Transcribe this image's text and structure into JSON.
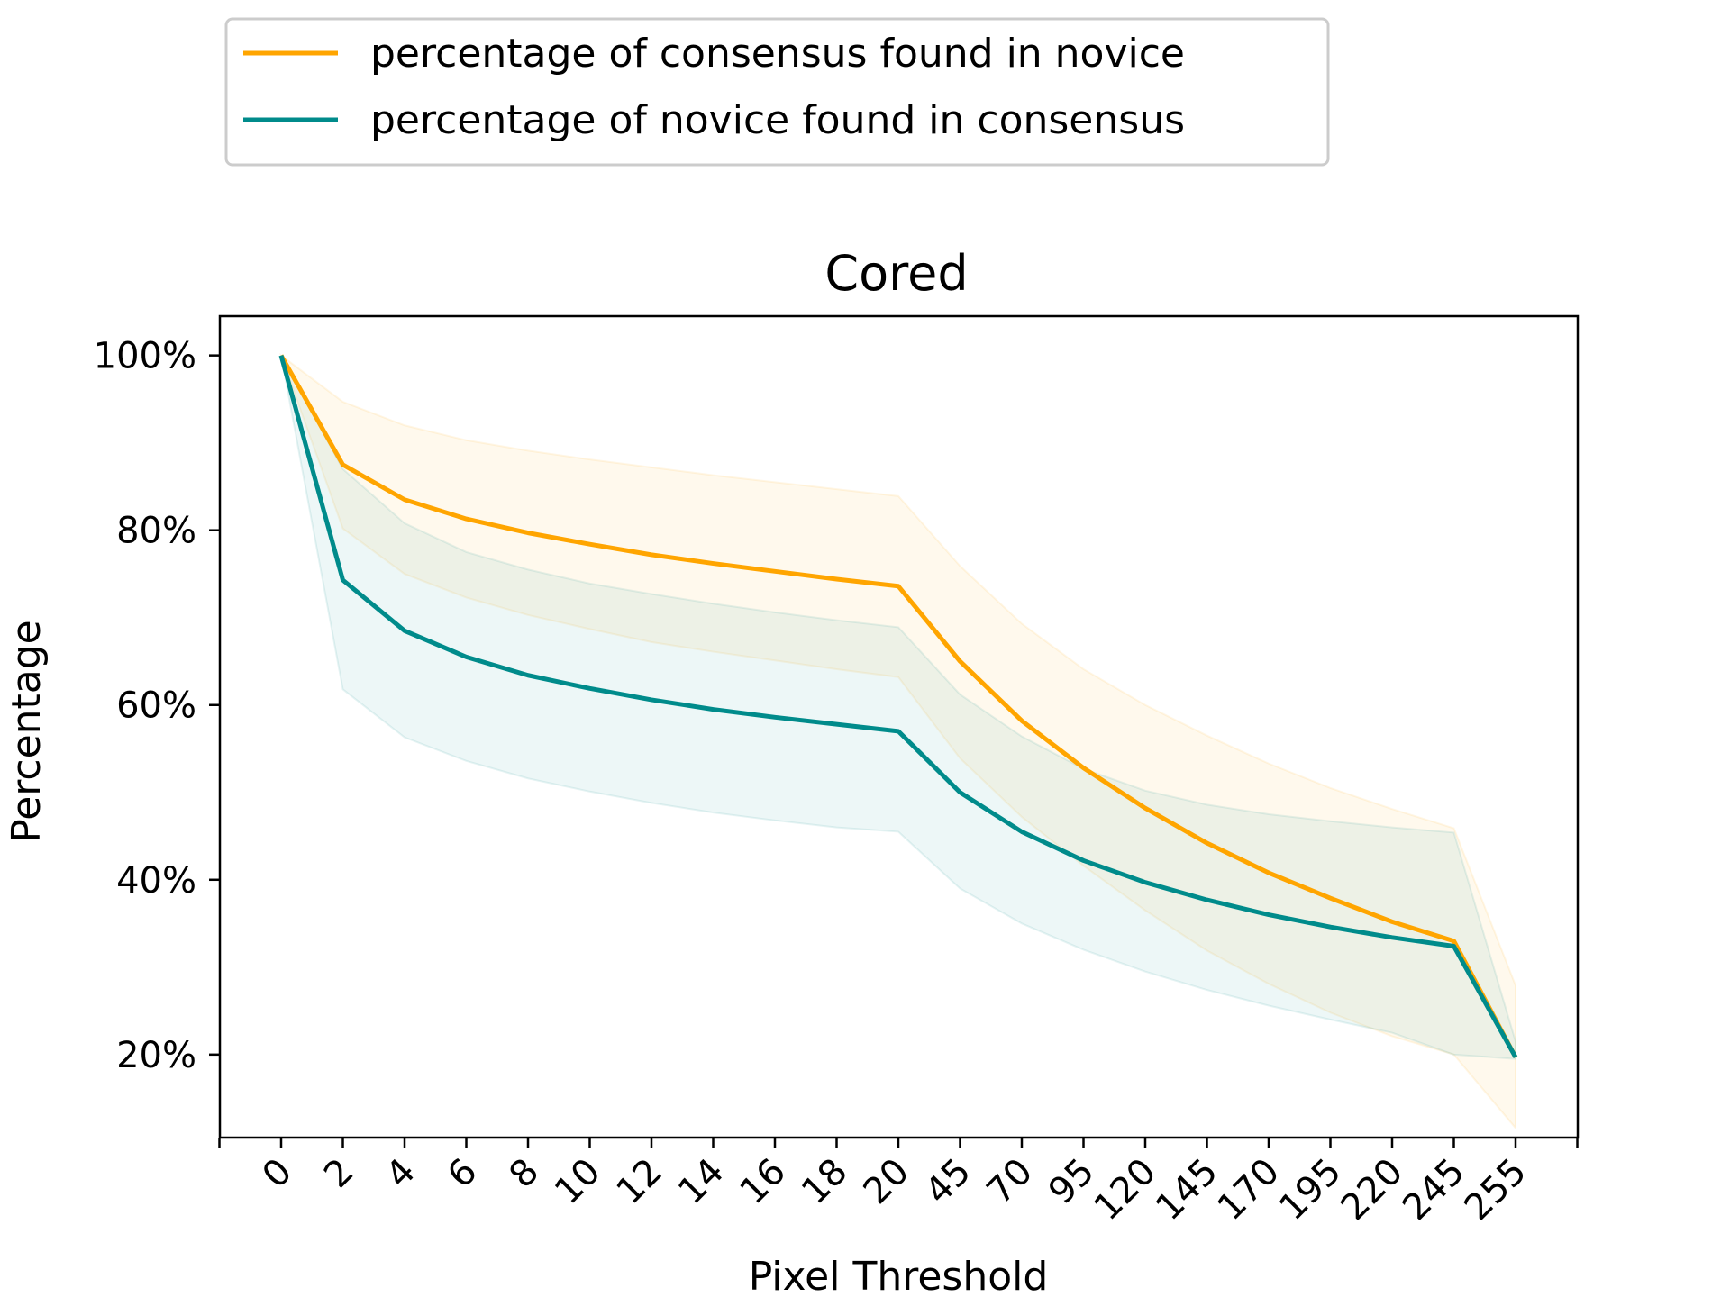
{
  "chart_data": {
    "type": "line",
    "title": "Cored",
    "xlabel": "Pixel Threshold",
    "ylabel": "Percentage",
    "categories": [
      "0",
      "2",
      "4",
      "6",
      "8",
      "10",
      "12",
      "14",
      "16",
      "18",
      "20",
      "45",
      "70",
      "95",
      "120",
      "145",
      "170",
      "195",
      "220",
      "245",
      "255"
    ],
    "yticks": [
      "20%",
      "40%",
      "60%",
      "80%",
      "100%"
    ],
    "ylim": [
      10.5,
      104.5
    ],
    "grid": false,
    "legend_position": "top-left, above the plot",
    "series": [
      {
        "name": "percentage of consensus found in novice",
        "color": "#FFA500",
        "values": [
          100,
          87.5,
          83.5,
          81.3,
          79.7,
          78.4,
          77.2,
          76.2,
          75.3,
          74.4,
          73.6,
          65.0,
          58.2,
          52.8,
          48.2,
          44.2,
          40.8,
          37.9,
          35.2,
          33.0,
          19.7
        ],
        "band_upper": [
          100,
          94.7,
          92.0,
          90.3,
          89.1,
          88.1,
          87.2,
          86.3,
          85.5,
          84.7,
          83.9,
          75.9,
          69.3,
          64.1,
          60.0,
          56.5,
          53.3,
          50.5,
          48.1,
          45.9,
          27.9
        ],
        "band_lower": [
          100,
          80.2,
          75.0,
          72.3,
          70.3,
          68.7,
          67.2,
          66.1,
          65.1,
          64.1,
          63.2,
          53.9,
          47.2,
          41.6,
          36.5,
          31.9,
          28.1,
          24.8,
          22.1,
          20.0,
          11.6
        ]
      },
      {
        "name": "percentage of novice found in consensus",
        "color": "#008B8B",
        "values": [
          100,
          74.3,
          68.5,
          65.5,
          63.4,
          61.9,
          60.6,
          59.5,
          58.6,
          57.8,
          57.0,
          50.0,
          45.5,
          42.2,
          39.7,
          37.7,
          36.0,
          34.6,
          33.4,
          32.4,
          19.7
        ],
        "band_upper": [
          100,
          87.0,
          80.8,
          77.5,
          75.5,
          73.9,
          72.7,
          71.6,
          70.6,
          69.7,
          68.9,
          61.2,
          56.4,
          52.7,
          50.2,
          48.6,
          47.5,
          46.7,
          46.0,
          45.4,
          21.5
        ],
        "band_lower": [
          100,
          61.8,
          56.3,
          53.6,
          51.6,
          50.1,
          48.8,
          47.7,
          46.8,
          46.0,
          45.5,
          39.0,
          35.0,
          32.0,
          29.5,
          27.4,
          25.6,
          24.0,
          22.5,
          20.0,
          19.5
        ]
      }
    ]
  }
}
